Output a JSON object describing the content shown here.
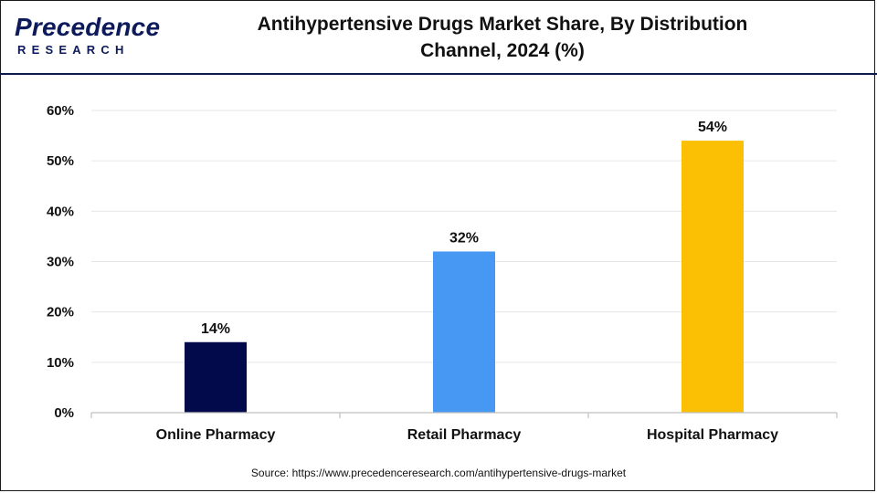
{
  "header": {
    "logo_word": "Precedence",
    "logo_sub": "RESEARCH",
    "title_line1": "Antihypertensive Drugs Market Share, By Distribution",
    "title_line2": "Channel, 2024 (%)"
  },
  "source": "Source: https://www.precedenceresearch.com/antihypertensive-drugs-market",
  "colors": {
    "online": "#020A4C",
    "retail": "#4698F2",
    "hospital": "#FBC004",
    "brand": "#0D1A5C"
  },
  "chart_data": {
    "type": "bar",
    "title": "Antihypertensive Drugs Market Share, By Distribution Channel, 2024 (%)",
    "categories": [
      "Online Pharmacy",
      "Retail Pharmacy",
      "Hospital Pharmacy"
    ],
    "values": [
      14,
      32,
      54
    ],
    "data_labels": [
      "14%",
      "32%",
      "54%"
    ],
    "bar_colors": [
      "#020A4C",
      "#4698F2",
      "#FBC004"
    ],
    "yticks": [
      "0%",
      "10%",
      "20%",
      "30%",
      "40%",
      "50%",
      "60%"
    ],
    "ylim": [
      0,
      60
    ],
    "grid": true,
    "xlabel": "",
    "ylabel": ""
  }
}
